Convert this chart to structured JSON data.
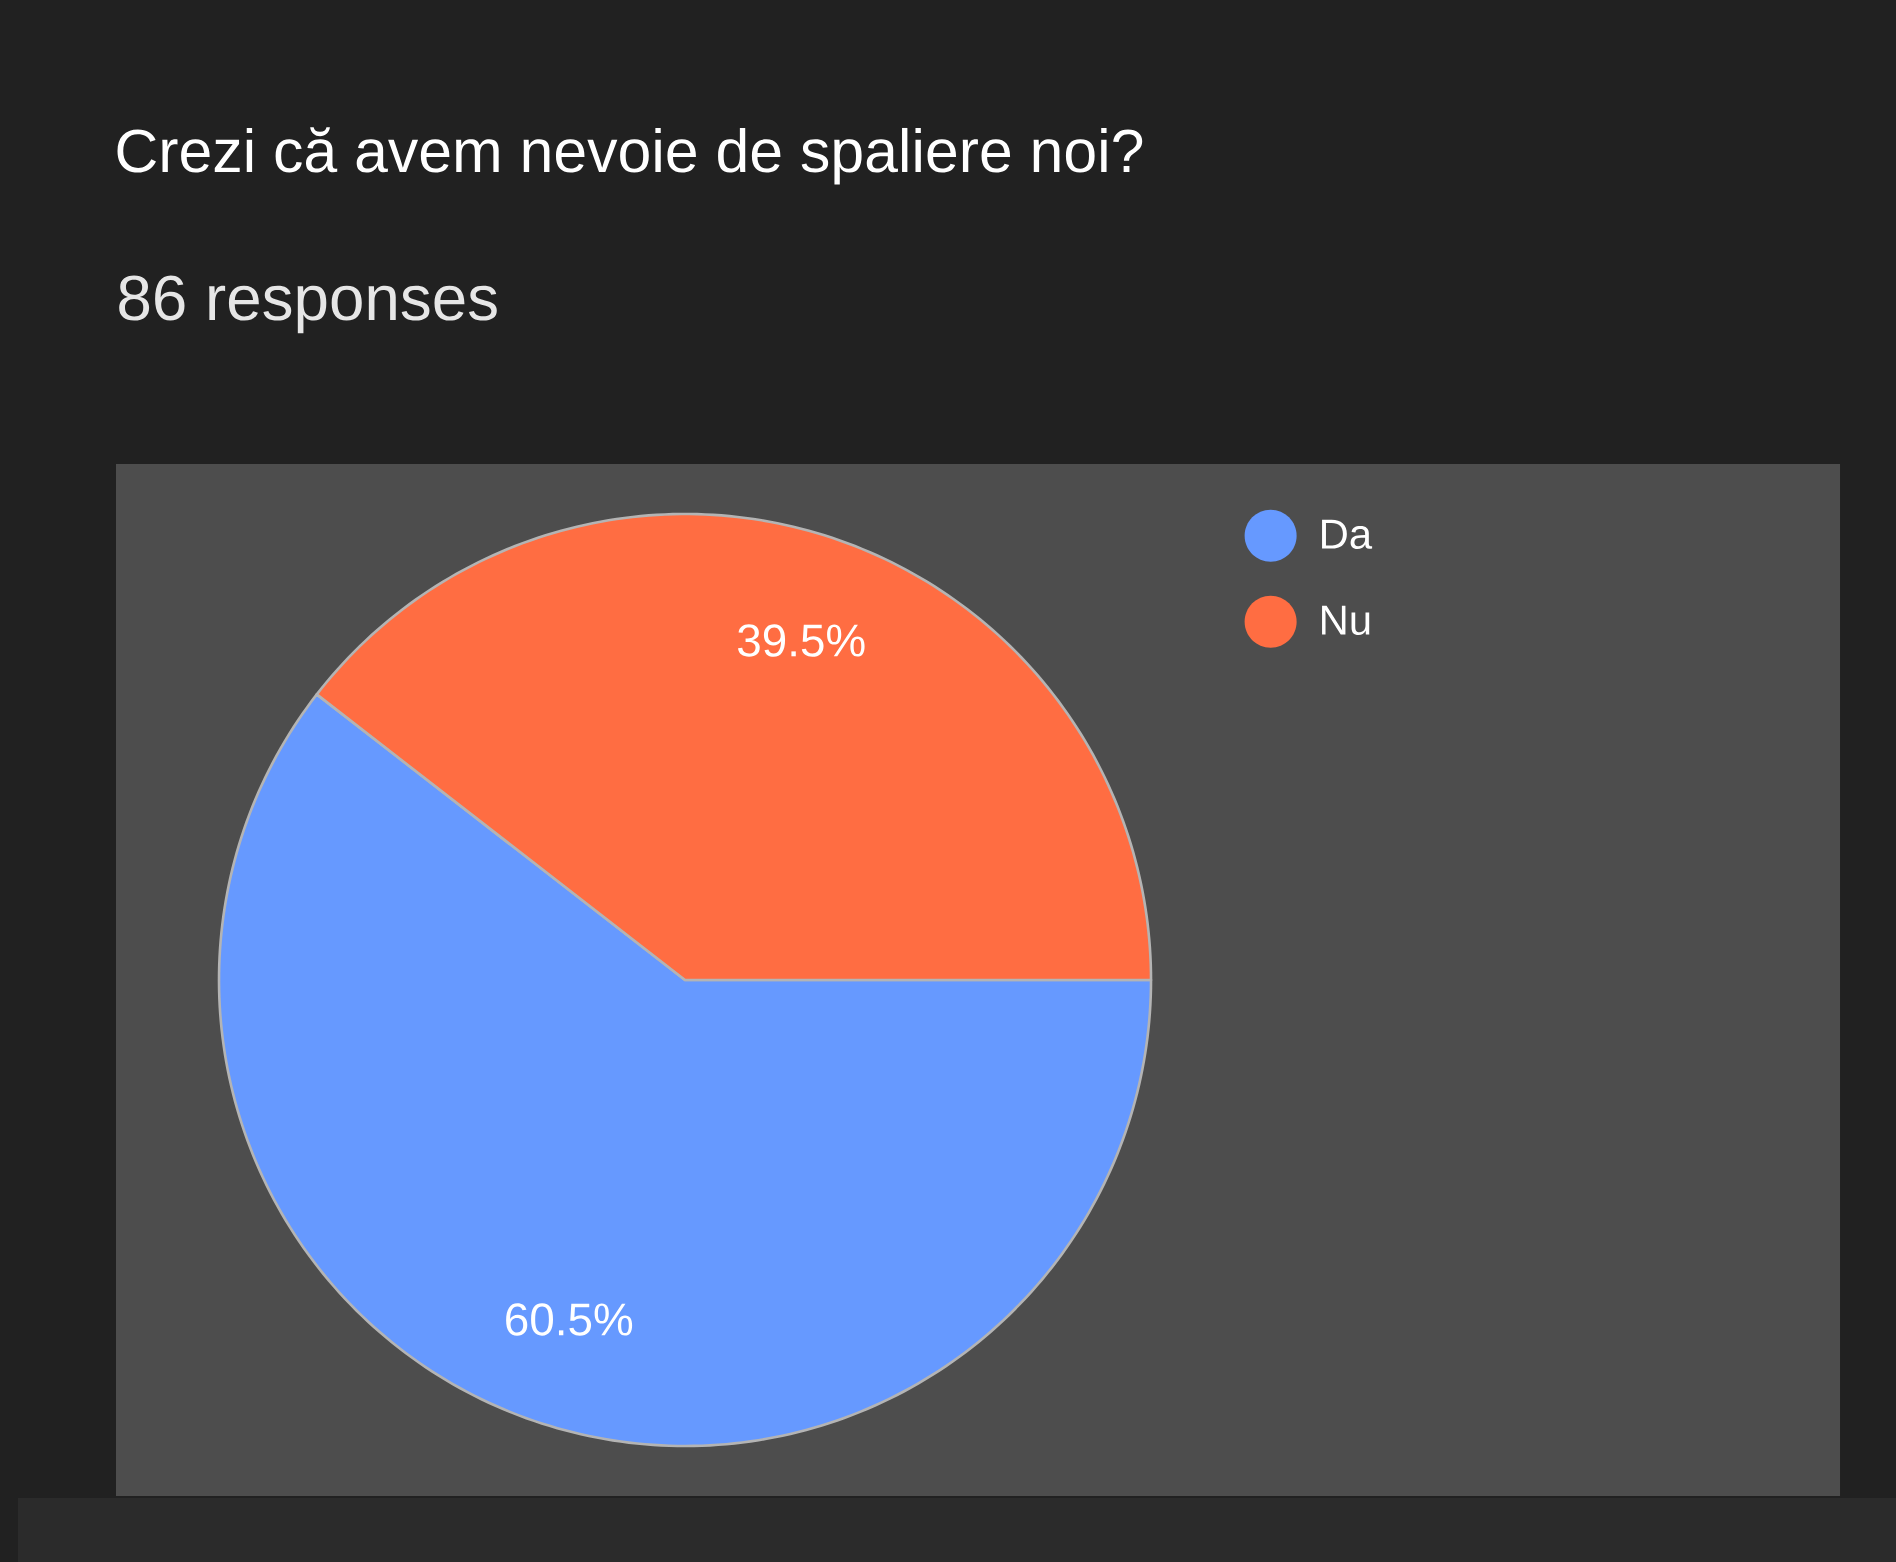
{
  "chart_data": {
    "type": "pie",
    "title": "Crezi că avem nevoie de spaliere noi?",
    "subtitle": "86 responses",
    "categories": [
      "Da",
      "Nu"
    ],
    "values": [
      60.5,
      39.5
    ],
    "colors": [
      "#6699ff",
      "#ff6d42"
    ],
    "value_labels": [
      "60.5%",
      "39.5%"
    ],
    "legend": "top right"
  }
}
